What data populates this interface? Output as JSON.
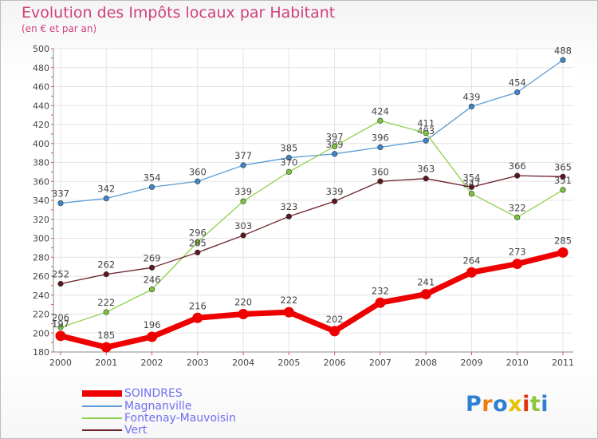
{
  "title": "Evolution des Impôts locaux par Habitant",
  "subtitle": "(en € et par an)",
  "logo": {
    "text": "Proxiti",
    "letter_colors": [
      "#2f7fd2",
      "#f07c10",
      "#2f7fd2",
      "#e8c000",
      "#e03010",
      "#8dc63f",
      "#2f7fd2"
    ]
  },
  "chart_data": {
    "type": "line",
    "title": "Evolution des Impôts locaux par Habitant",
    "subtitle": "(en € et par an)",
    "categories": [
      "2000",
      "2001",
      "2002",
      "2003",
      "2004",
      "2005",
      "2006",
      "2007",
      "2008",
      "2009",
      "2010",
      "2011"
    ],
    "ylim": [
      180,
      500
    ],
    "yticks": [
      180,
      200,
      220,
      240,
      260,
      280,
      300,
      320,
      340,
      360,
      380,
      400,
      420,
      440,
      460,
      480,
      500
    ],
    "grid": true,
    "legend_position": "bottom-left",
    "series": [
      {
        "name": "Magnanville",
        "color": "#5b9bd5",
        "marker_color": "#3f86c8",
        "values": [
          337,
          342,
          354,
          360,
          377,
          385,
          389,
          396,
          403,
          439,
          454,
          488
        ]
      },
      {
        "name": "Fontenay-Mauvoisin",
        "color": "#8fd14f",
        "marker_color": "#7cc43a",
        "values": [
          206,
          222,
          246,
          296,
          339,
          370,
          397,
          424,
          411,
          347,
          322,
          351
        ]
      },
      {
        "name": "Vert",
        "color": "#6b1f28",
        "marker_color": "#5c1820",
        "values": [
          252,
          262,
          269,
          285,
          303,
          323,
          339,
          360,
          363,
          354,
          366,
          365
        ]
      },
      {
        "name": "SOINDRES",
        "color": "#ee0000",
        "marker_color": "#ee0000",
        "values": [
          197,
          185,
          196,
          216,
          220,
          222,
          202,
          232,
          241,
          264,
          273,
          285
        ],
        "highlight": true
      }
    ]
  },
  "legend": [
    {
      "label": "SOINDRES",
      "color": "#ee0000",
      "text_color": "#6f6ff2",
      "thick": true
    },
    {
      "label": "Magnanville",
      "color": "#5b9bd5",
      "text_color": "#6f6ff2",
      "thick": false
    },
    {
      "label": "Fontenay-Mauvoisin",
      "color": "#8fd14f",
      "text_color": "#6f6ff2",
      "thick": false
    },
    {
      "label": "Vert",
      "color": "#6b1f28",
      "text_color": "#6f6ff2",
      "thick": false
    }
  ]
}
